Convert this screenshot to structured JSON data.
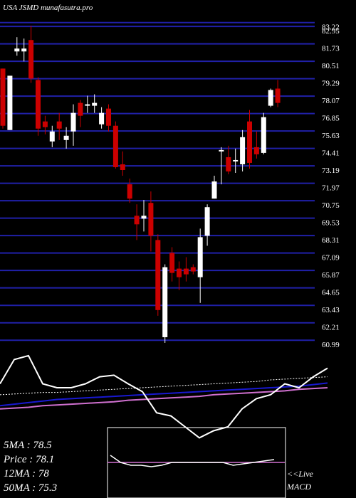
{
  "chart_data": {
    "type": "candlestick",
    "title": "USA JSMD munafasutra.pro",
    "ylim": [
      60.9,
      84.8
    ],
    "yticks": [
      83.22,
      82.95,
      81.73,
      80.51,
      79.29,
      78.07,
      76.85,
      75.63,
      74.41,
      73.19,
      71.97,
      70.75,
      69.53,
      68.31,
      67.09,
      65.87,
      64.65,
      63.43,
      62.21,
      60.99
    ],
    "grid": true,
    "grid_color": "#2020a8",
    "up_color": "#ffffff",
    "down_color": "#cc0000",
    "open": [
      80.0,
      75.7,
      81.2,
      81.2,
      82.0,
      79.2,
      76.3,
      74.9,
      76.3,
      75.0,
      75.6,
      77.6,
      77.4,
      77.4,
      76.1,
      77.2,
      76.0,
      73.3,
      71.9,
      69.7,
      69.5,
      70.6,
      68.0,
      61.2,
      67.1,
      66.0,
      66.0,
      66.1,
      65.4,
      68.3,
      70.9,
      74.2,
      73.8,
      73.5,
      73.3,
      76.3,
      74.5,
      74.1,
      77.4,
      78.6
    ],
    "high": [
      80.0,
      79.5,
      82.2,
      82.1,
      83.0,
      79.4,
      76.7,
      76.0,
      76.9,
      75.9,
      77.5,
      77.8,
      78.1,
      78.2,
      77.3,
      77.5,
      76.3,
      74.2,
      72.3,
      70.5,
      70.8,
      71.4,
      68.4,
      66.3,
      67.5,
      66.5,
      66.8,
      66.3,
      68.8,
      70.5,
      72.5,
      74.5,
      74.6,
      74.4,
      75.7,
      77.1,
      75.6,
      76.9,
      78.6,
      79.2
    ],
    "low": [
      75.8,
      75.7,
      80.9,
      80.5,
      79.0,
      75.3,
      75.4,
      74.5,
      75.0,
      74.4,
      74.6,
      75.9,
      76.9,
      76.9,
      75.8,
      75.6,
      73.0,
      72.5,
      70.6,
      68.0,
      68.6,
      67.2,
      62.7,
      60.8,
      65.1,
      64.5,
      65.1,
      65.6,
      63.6,
      67.6,
      70.9,
      71.9,
      72.6,
      72.7,
      72.8,
      73.0,
      73.7,
      74.0,
      77.3,
      77.3
    ],
    "close": [
      76.0,
      79.5,
      81.4,
      81.4,
      79.3,
      75.8,
      75.9,
      75.6,
      75.8,
      75.3,
      76.9,
      76.7,
      77.5,
      77.6,
      76.9,
      76.0,
      73.1,
      72.9,
      70.9,
      69.1,
      69.7,
      68.3,
      63.1,
      66.1,
      65.7,
      65.4,
      65.6,
      65.8,
      68.2,
      70.3,
      72.1,
      74.3,
      72.8,
      73.6,
      75.2,
      73.4,
      74.0,
      76.6,
      78.5,
      77.6
    ],
    "indicators": {
      "ylim": [
        0,
        100
      ],
      "series": [
        {
          "color": "#ffffff",
          "dash": "2,2",
          "width": 1,
          "values": [
            41,
            42,
            43,
            44,
            44,
            45,
            46,
            47,
            48,
            49,
            50,
            51,
            52,
            53,
            54,
            55,
            56,
            57,
            58,
            60,
            61,
            62,
            63,
            64
          ]
        },
        {
          "color": "#1818d0",
          "dash": "",
          "width": 2,
          "values": [
            27,
            29,
            31,
            33,
            35,
            36,
            37,
            38,
            39,
            40,
            41,
            42,
            43,
            44,
            45,
            46,
            47,
            48,
            49,
            50,
            51,
            52,
            54,
            56
          ]
        },
        {
          "color": "#d070d0",
          "dash": "",
          "width": 2,
          "values": [
            23,
            24,
            25,
            27,
            28,
            29,
            30,
            31,
            32,
            34,
            35,
            36,
            37,
            38,
            39,
            41,
            42,
            43,
            44,
            45,
            46,
            48,
            49,
            50
          ]
        },
        {
          "color": "#ffffff",
          "dash": "",
          "width": 2,
          "values": [
            55,
            86,
            91,
            55,
            50,
            50,
            55,
            64,
            66,
            55,
            45,
            18,
            14,
            0,
            -14,
            -5,
            0,
            23,
            36,
            41,
            55,
            50,
            64,
            75
          ]
        }
      ]
    },
    "macd": {
      "macd": [
        5,
        0,
        -2,
        -2,
        -3,
        -2,
        0,
        0,
        0,
        0,
        0,
        0,
        -2,
        -1,
        0,
        1,
        2
      ],
      "signal": [
        0,
        0,
        0,
        0,
        0,
        0,
        0,
        0,
        0,
        0
      ],
      "macd_color": "#ffffff",
      "signal_color": "#d070d0"
    },
    "info": [
      "5MA : 78.5",
      "Price  : 78.1",
      "12MA : 78",
      "50MA : 75.3"
    ],
    "live_label": "<<Live",
    "macd_label": "MACD"
  }
}
